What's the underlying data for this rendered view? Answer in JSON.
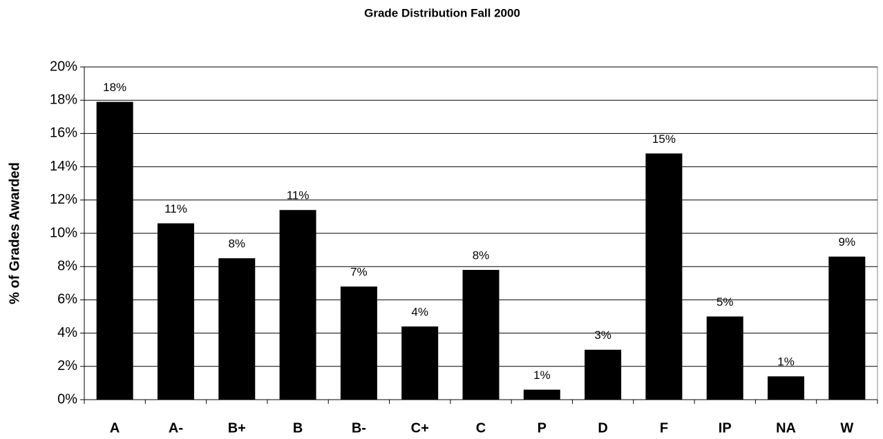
{
  "chart_data": {
    "type": "bar",
    "title": "Grade Distribution Fall 2000",
    "y_label": "% of Grades Awarded",
    "categories": [
      "A",
      "A-",
      "B+",
      "B",
      "B-",
      "C+",
      "C",
      "P",
      "D",
      "F",
      "IP",
      "NA",
      "W"
    ],
    "values": [
      17.9,
      10.6,
      8.5,
      11.4,
      6.8,
      4.4,
      7.8,
      0.6,
      3.0,
      14.8,
      5.0,
      1.4,
      8.6
    ],
    "value_labels": [
      "18%",
      "11%",
      "8%",
      "11%",
      "7%",
      "4%",
      "8%",
      "1%",
      "3%",
      "15%",
      "5%",
      "1%",
      "9%"
    ],
    "color": "#000000",
    "ylim": [
      0,
      20
    ],
    "yticks": [
      {
        "value": 0,
        "label": "0%"
      },
      {
        "value": 2,
        "label": "2%"
      },
      {
        "value": 4,
        "label": "4%"
      },
      {
        "value": 6,
        "label": "6%"
      },
      {
        "value": 8,
        "label": "8%"
      },
      {
        "value": 10,
        "label": "10%"
      },
      {
        "value": 12,
        "label": "12%"
      },
      {
        "value": 14,
        "label": "14%"
      },
      {
        "value": 16,
        "label": "16%"
      },
      {
        "value": 18,
        "label": "18%"
      },
      {
        "value": 20,
        "label": "20%"
      }
    ],
    "grid": true
  }
}
